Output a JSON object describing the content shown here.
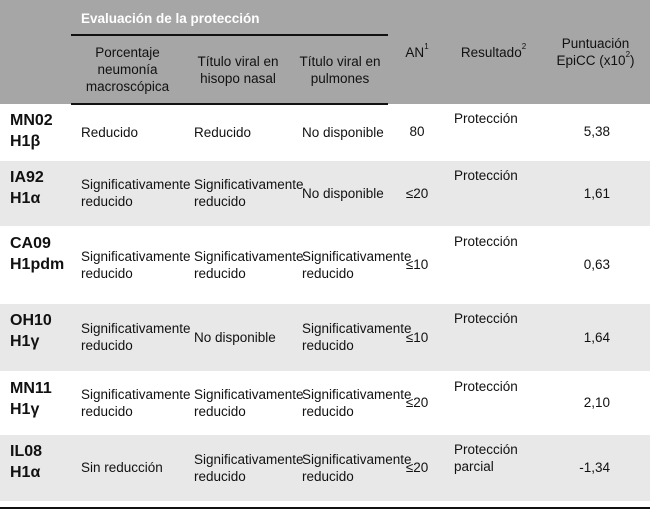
{
  "header": {
    "group_title": "Evaluación de la protección",
    "col_pneumonia": "Porcentaje neumonía macroscópica",
    "col_nasal": "Título viral en hisopo nasal",
    "col_lungs": "Título viral en pulmones",
    "col_an": "AN",
    "col_an_sup": "1",
    "col_result": "Resultado",
    "col_result_sup": "2",
    "col_score_line1": "Puntuación",
    "col_score_line2a": "EpiCC (x10",
    "col_score_sup": "2",
    "col_score_line2b": ")"
  },
  "rows": [
    {
      "virus": "MN02 H1β",
      "pneumonia": "Reducido",
      "nasal": "Reducido",
      "lungs": "No disponible",
      "an": "80",
      "result": "Protección",
      "score": "5,38"
    },
    {
      "virus": "IA92 H1α",
      "pneumonia": "Significativamente reducido",
      "nasal": "Significativamente reducido",
      "lungs": "No disponible",
      "an": "≤20",
      "result": "Protección",
      "score": "1,61"
    },
    {
      "virus": "CA09 H1pdm",
      "pneumonia": "Significativamente reducido",
      "nasal": "Significativamente reducido",
      "lungs": "Significativamente reducido",
      "an": "≤10",
      "result": "Protección",
      "score": "0,63"
    },
    {
      "virus": "OH10 H1γ",
      "pneumonia": "Significativamente reducido",
      "nasal": "No disponible",
      "lungs": "Significativamente reducido",
      "an": "≤10",
      "result": "Protección",
      "score": "1,64"
    },
    {
      "virus": "MN11 H1γ",
      "pneumonia": "Significativamente reducido",
      "nasal": "Significativamente reducido",
      "lungs": "Significativamente reducido",
      "an": "≤20",
      "result": "Protección",
      "score": "2,10"
    },
    {
      "virus": "IL08 H1α",
      "pneumonia": "Sin reducción",
      "nasal": "Significativamente reducido",
      "lungs": "Significativamente reducido",
      "an": "≤20",
      "result": "Protección parcial",
      "score": "-1,34"
    }
  ]
}
